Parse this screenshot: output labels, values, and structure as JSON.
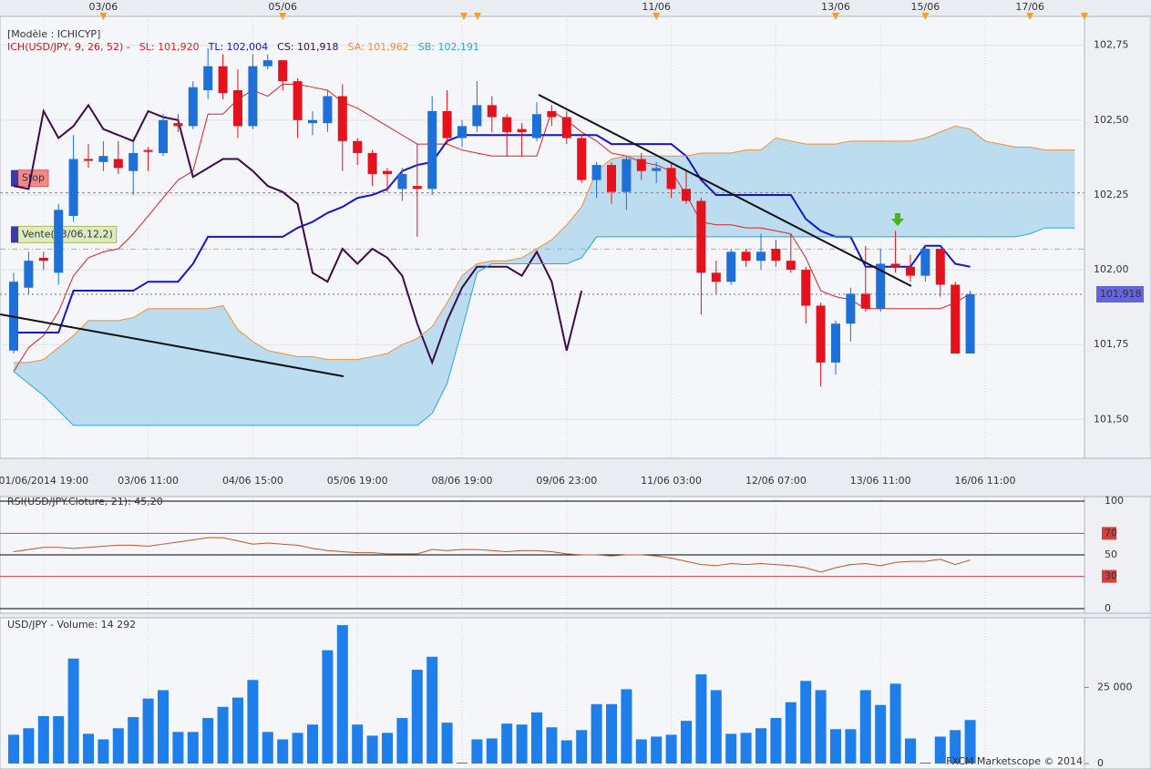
{
  "chart_data": [
    {
      "type": "candlestick",
      "model_label": "[Modèle : ICHICYP]",
      "indicator_label": "ICH(USD/JPY, 9, 26, 52) -",
      "categories": [
        null,
        null,
        "01/06/2014 19:00",
        null,
        null,
        null,
        null,
        null,
        null,
        "03/06 11:00",
        null,
        null,
        null,
        null,
        null,
        null,
        "04/06 15:00",
        null,
        null,
        null,
        null,
        null,
        null,
        "05/06 19:00",
        null,
        null,
        null,
        null,
        null,
        null,
        "08/06 19:00",
        null,
        null,
        null,
        null,
        null,
        null,
        "09/06 23:00",
        null,
        null,
        null,
        null,
        null,
        null,
        "11/06 03:00",
        null,
        null,
        null,
        null,
        null,
        null,
        "12/06 07:00",
        null,
        null,
        null,
        null,
        null,
        null,
        "13/06 11:00",
        null,
        null,
        null,
        null,
        null,
        null,
        "16/06 11:00",
        null,
        null,
        null,
        null,
        null,
        null
      ],
      "top_categories": [
        null,
        null,
        null,
        null,
        null,
        null,
        "03/06",
        null,
        null,
        null,
        null,
        null,
        null,
        null,
        null,
        null,
        null,
        null,
        "05/06",
        null,
        null,
        null,
        null,
        null,
        null,
        null,
        null,
        null,
        null,
        null,
        null,
        null,
        null,
        null,
        null,
        null,
        null,
        null,
        null,
        null,
        null,
        null,
        null,
        "11/06",
        null,
        null,
        null,
        null,
        null,
        null,
        null,
        null,
        null,
        null,
        null,
        "13/06",
        null,
        null,
        null,
        null,
        null,
        "15/06",
        null,
        null,
        null,
        null,
        null,
        null,
        "17/06",
        null,
        null,
        null
      ],
      "open": [
        101.73,
        101.94,
        102.04,
        101.99,
        102.18,
        102.37,
        102.36,
        102.37,
        102.33,
        102.4,
        102.39,
        102.49,
        102.48,
        102.6,
        102.68,
        102.6,
        102.48,
        102.68,
        102.7,
        102.63,
        102.49,
        102.49,
        102.58,
        102.43,
        102.39,
        102.33,
        102.27,
        102.28,
        102.27,
        102.53,
        102.44,
        102.48,
        102.55,
        102.51,
        102.47,
        102.44,
        102.53,
        102.51,
        102.44,
        102.3,
        102.35,
        102.26,
        102.37,
        102.33,
        102.34,
        102.27,
        102.23,
        101.99,
        101.96,
        102.06,
        102.03,
        102.07,
        102.03,
        102.0,
        101.88,
        101.69,
        101.82,
        101.92,
        101.87,
        102.02,
        102.01,
        101.98,
        102.07,
        101.95,
        101.72,
        null,
        null,
        null,
        null,
        null,
        null,
        null
      ],
      "high": [
        101.99,
        102.06,
        102.06,
        102.22,
        102.45,
        102.42,
        102.43,
        102.43,
        102.43,
        102.41,
        102.52,
        102.52,
        102.63,
        102.74,
        102.72,
        102.67,
        102.72,
        102.72,
        102.7,
        102.64,
        102.53,
        102.6,
        102.62,
        102.44,
        102.4,
        102.34,
        102.34,
        102.42,
        102.58,
        102.6,
        102.5,
        102.63,
        102.58,
        102.52,
        102.49,
        102.56,
        102.55,
        102.53,
        102.45,
        102.36,
        102.36,
        102.38,
        102.39,
        102.36,
        102.36,
        102.33,
        102.24,
        102.03,
        102.07,
        102.07,
        102.12,
        102.1,
        102.12,
        102.01,
        101.89,
        101.83,
        101.94,
        102.08,
        102.07,
        102.13,
        102.05,
        102.08,
        102.07,
        101.96,
        101.93,
        null,
        null,
        null,
        null,
        null,
        null,
        null
      ],
      "low": [
        101.72,
        101.92,
        102.0,
        101.95,
        102.16,
        102.34,
        102.33,
        102.32,
        102.25,
        102.33,
        102.38,
        102.46,
        102.47,
        102.57,
        102.57,
        102.44,
        102.47,
        102.67,
        102.6,
        102.44,
        102.45,
        102.46,
        102.33,
        102.35,
        102.28,
        102.26,
        102.23,
        102.11,
        102.25,
        102.42,
        102.41,
        102.46,
        102.46,
        102.38,
        102.38,
        102.43,
        102.48,
        102.42,
        102.29,
        102.24,
        102.22,
        102.2,
        102.3,
        102.29,
        102.24,
        102.22,
        101.85,
        101.92,
        101.95,
        102.01,
        102.0,
        102.01,
        101.99,
        101.82,
        101.61,
        101.65,
        101.76,
        101.86,
        101.86,
        101.99,
        101.96,
        101.96,
        101.91,
        101.72,
        101.72,
        null,
        null,
        null,
        null,
        null,
        null,
        null
      ],
      "close": [
        101.96,
        102.03,
        102.03,
        102.2,
        102.37,
        102.37,
        102.38,
        102.34,
        102.39,
        102.4,
        102.5,
        102.48,
        102.61,
        102.68,
        102.59,
        102.48,
        102.68,
        102.7,
        102.63,
        102.5,
        102.5,
        102.58,
        102.43,
        102.39,
        102.32,
        102.32,
        102.32,
        102.27,
        102.53,
        102.44,
        102.48,
        102.55,
        102.51,
        102.46,
        102.46,
        102.52,
        102.51,
        102.44,
        102.3,
        102.35,
        102.26,
        102.37,
        102.33,
        102.34,
        102.27,
        102.23,
        101.99,
        101.96,
        102.06,
        102.03,
        102.06,
        102.03,
        102.0,
        101.88,
        101.69,
        101.82,
        101.92,
        101.87,
        102.02,
        102.01,
        101.98,
        102.07,
        101.95,
        101.72,
        101.918,
        null,
        null,
        null,
        null,
        null,
        null,
        null
      ],
      "up_color": "#1f6fd8",
      "down_color": "#e3121c",
      "series": [
        {
          "name": "SL: 101,920",
          "color": "#e02222",
          "width": 1,
          "values": [
            101.66,
            101.74,
            101.78,
            101.86,
            101.98,
            102.04,
            102.06,
            102.07,
            102.12,
            102.18,
            102.24,
            102.3,
            102.33,
            102.52,
            102.52,
            102.57,
            102.6,
            102.58,
            102.62,
            102.62,
            102.61,
            102.6,
            102.56,
            102.54,
            102.51,
            102.48,
            102.45,
            102.42,
            102.42,
            102.42,
            102.4,
            102.39,
            102.38,
            102.38,
            102.38,
            102.38,
            102.53,
            102.5,
            102.46,
            102.43,
            102.39,
            102.38,
            102.36,
            102.35,
            102.33,
            102.25,
            102.16,
            102.15,
            102.15,
            102.14,
            102.14,
            102.13,
            102.12,
            102.04,
            101.93,
            101.91,
            101.9,
            101.87,
            101.87,
            101.87,
            101.87,
            101.87,
            101.87,
            101.89,
            101.92,
            null,
            null,
            null,
            null,
            null,
            null,
            null
          ]
        },
        {
          "name": "TL: 102,004",
          "color": "#1414d2",
          "width": 2,
          "values": [
            101.79,
            101.79,
            101.79,
            101.79,
            101.93,
            101.93,
            101.93,
            101.93,
            101.93,
            101.96,
            101.96,
            101.96,
            102.02,
            102.11,
            102.11,
            102.11,
            102.11,
            102.11,
            102.11,
            102.14,
            102.16,
            102.19,
            102.21,
            102.24,
            102.25,
            102.27,
            102.33,
            102.35,
            102.36,
            102.43,
            102.45,
            102.45,
            102.45,
            102.45,
            102.45,
            102.45,
            102.45,
            102.45,
            102.45,
            102.45,
            102.42,
            102.42,
            102.42,
            102.42,
            102.42,
            102.38,
            102.3,
            102.25,
            102.25,
            102.25,
            102.25,
            102.25,
            102.25,
            102.17,
            102.13,
            102.11,
            102.11,
            102.01,
            102.01,
            102.01,
            102.01,
            102.08,
            102.08,
            102.02,
            102.01,
            null,
            null,
            null,
            null,
            null,
            null,
            null
          ]
        },
        {
          "name": "CS: 101,918",
          "color": "#3c0a4c",
          "width": 2,
          "values": [
            102.28,
            102.27,
            102.53,
            102.44,
            102.48,
            102.55,
            102.47,
            102.45,
            102.43,
            102.53,
            102.51,
            102.5,
            102.31,
            102.34,
            102.37,
            102.37,
            102.33,
            102.28,
            102.26,
            102.22,
            101.99,
            101.96,
            102.07,
            102.02,
            102.07,
            102.04,
            101.98,
            101.82,
            101.69,
            101.83,
            101.94,
            102.01,
            102.01,
            102.01,
            101.98,
            102.06,
            101.96,
            101.73,
            101.93,
            null,
            null,
            null,
            null,
            null,
            null,
            null,
            null,
            null,
            null,
            null,
            null,
            null,
            null,
            null,
            null,
            null,
            null,
            null,
            null,
            null,
            null,
            null,
            null,
            null,
            null,
            null,
            null,
            null,
            null,
            null,
            null,
            null
          ]
        },
        {
          "name": "SA: 101,962",
          "color": "#f0903a",
          "width": 1,
          "values": [
            101.69,
            101.69,
            101.7,
            101.74,
            101.78,
            101.83,
            101.83,
            101.83,
            101.84,
            101.87,
            101.87,
            101.87,
            101.87,
            101.87,
            101.88,
            101.8,
            101.76,
            101.73,
            101.72,
            101.71,
            101.71,
            101.7,
            101.7,
            101.7,
            101.71,
            101.72,
            101.75,
            101.77,
            101.81,
            101.89,
            101.98,
            102.02,
            102.03,
            102.03,
            102.04,
            102.07,
            102.1,
            102.15,
            102.21,
            102.33,
            102.37,
            102.38,
            102.38,
            102.38,
            102.38,
            102.38,
            102.39,
            102.39,
            102.39,
            102.4,
            102.4,
            102.44,
            102.43,
            102.42,
            102.42,
            102.42,
            102.43,
            102.43,
            102.43,
            102.43,
            102.43,
            102.44,
            102.46,
            102.48,
            102.47,
            102.43,
            102.42,
            102.41,
            102.41,
            102.4,
            102.4,
            102.4
          ]
        },
        {
          "name": "SB: 102,191",
          "color": "#2aa6e2",
          "width": 1,
          "values": [
            101.66,
            101.62,
            101.58,
            101.53,
            101.48,
            101.48,
            101.48,
            101.48,
            101.48,
            101.48,
            101.48,
            101.48,
            101.48,
            101.48,
            101.48,
            101.48,
            101.48,
            101.48,
            101.48,
            101.48,
            101.48,
            101.48,
            101.48,
            101.48,
            101.48,
            101.48,
            101.48,
            101.48,
            101.52,
            101.62,
            101.8,
            101.99,
            102.02,
            102.02,
            102.02,
            102.02,
            102.02,
            102.02,
            102.04,
            102.11,
            102.11,
            102.11,
            102.11,
            102.11,
            102.11,
            102.11,
            102.11,
            102.11,
            102.11,
            102.11,
            102.11,
            102.11,
            102.11,
            102.11,
            102.11,
            102.11,
            102.11,
            102.11,
            102.11,
            102.11,
            102.11,
            102.11,
            102.11,
            102.11,
            102.11,
            102.11,
            102.11,
            102.11,
            102.12,
            102.14,
            102.14,
            102.14
          ]
        }
      ],
      "cloud_color": "#bcdcef",
      "ylim": [
        101.37,
        102.81
      ],
      "yticks": [
        {
          "value": 101.5,
          "label": "101,50"
        },
        {
          "value": 101.75,
          "label": "101,75"
        },
        {
          "value": 102,
          "label": "102,00"
        },
        {
          "value": 102.25,
          "label": "102,25"
        },
        {
          "value": 102.5,
          "label": "102,50"
        },
        {
          "value": 102.75,
          "label": "102,75"
        }
      ],
      "last_price": {
        "value": 101.918,
        "label": "101,918",
        "color": "#6464dc"
      },
      "levels": [
        {
          "name": "Stop",
          "value": 102.257,
          "color": "#e36060",
          "fill": "#f08a8a"
        },
        {
          "name": "Vente(13/06,12,2)",
          "value": 102.069,
          "color": "#b0b860",
          "fill": "#dcecc0"
        }
      ],
      "grid": true
    },
    {
      "type": "line",
      "title": "RSI(USD/JPY.Cloture, 21): 45,20",
      "color": "#c0542a",
      "values": [
        53,
        55,
        57,
        57,
        56,
        57,
        58,
        59,
        59,
        58,
        60,
        62,
        64,
        66,
        66,
        63,
        60,
        61,
        60,
        59,
        56,
        54,
        53,
        52,
        52,
        51,
        51,
        51,
        55,
        54,
        55,
        55,
        54,
        53,
        54,
        54,
        53,
        51,
        50,
        50,
        49,
        50,
        50,
        49,
        47,
        44,
        41,
        40,
        42,
        41,
        42,
        41,
        40,
        38,
        34,
        38,
        41,
        42,
        40,
        43,
        44,
        44,
        46,
        41,
        45.2,
        null,
        null,
        null,
        null,
        null,
        null,
        null
      ],
      "ylim": [
        -4.2,
        104.2
      ],
      "yticks": [
        0,
        30,
        50,
        70,
        100
      ],
      "tick_colors": [
        "#000000",
        "#d84040",
        "#000000",
        "#d84040",
        "#000000"
      ]
    },
    {
      "type": "bar",
      "title": "USD/JPY - Volume: 14 292",
      "color": "#1e7fea",
      "values": [
        9450,
        11590,
        15550,
        15550,
        34450,
        9760,
        7930,
        11590,
        15240,
        21340,
        24090,
        10370,
        10370,
        14940,
        18600,
        21650,
        27440,
        10370,
        7930,
        10060,
        12800,
        37200,
        45430,
        12800,
        9150,
        10060,
        14940,
        30790,
        35060,
        13420,
        300,
        7930,
        8230,
        13110,
        12800,
        16770,
        11890,
        7620,
        10980,
        19510,
        19510,
        24390,
        7930,
        8840,
        9450,
        14020,
        29270,
        24090,
        9760,
        10060,
        11590,
        14940,
        20120,
        27130,
        24090,
        11280,
        11280,
        24090,
        19210,
        26220,
        8230,
        300,
        8840,
        10980,
        14292,
        null,
        null,
        null,
        null,
        null,
        null,
        null
      ],
      "ylim": [
        0,
        47260
      ],
      "yticks": [
        0,
        {
          "value": 25000,
          "label": "25 000"
        }
      ]
    }
  ],
  "footer": "FXCM Marketscope © 2014"
}
